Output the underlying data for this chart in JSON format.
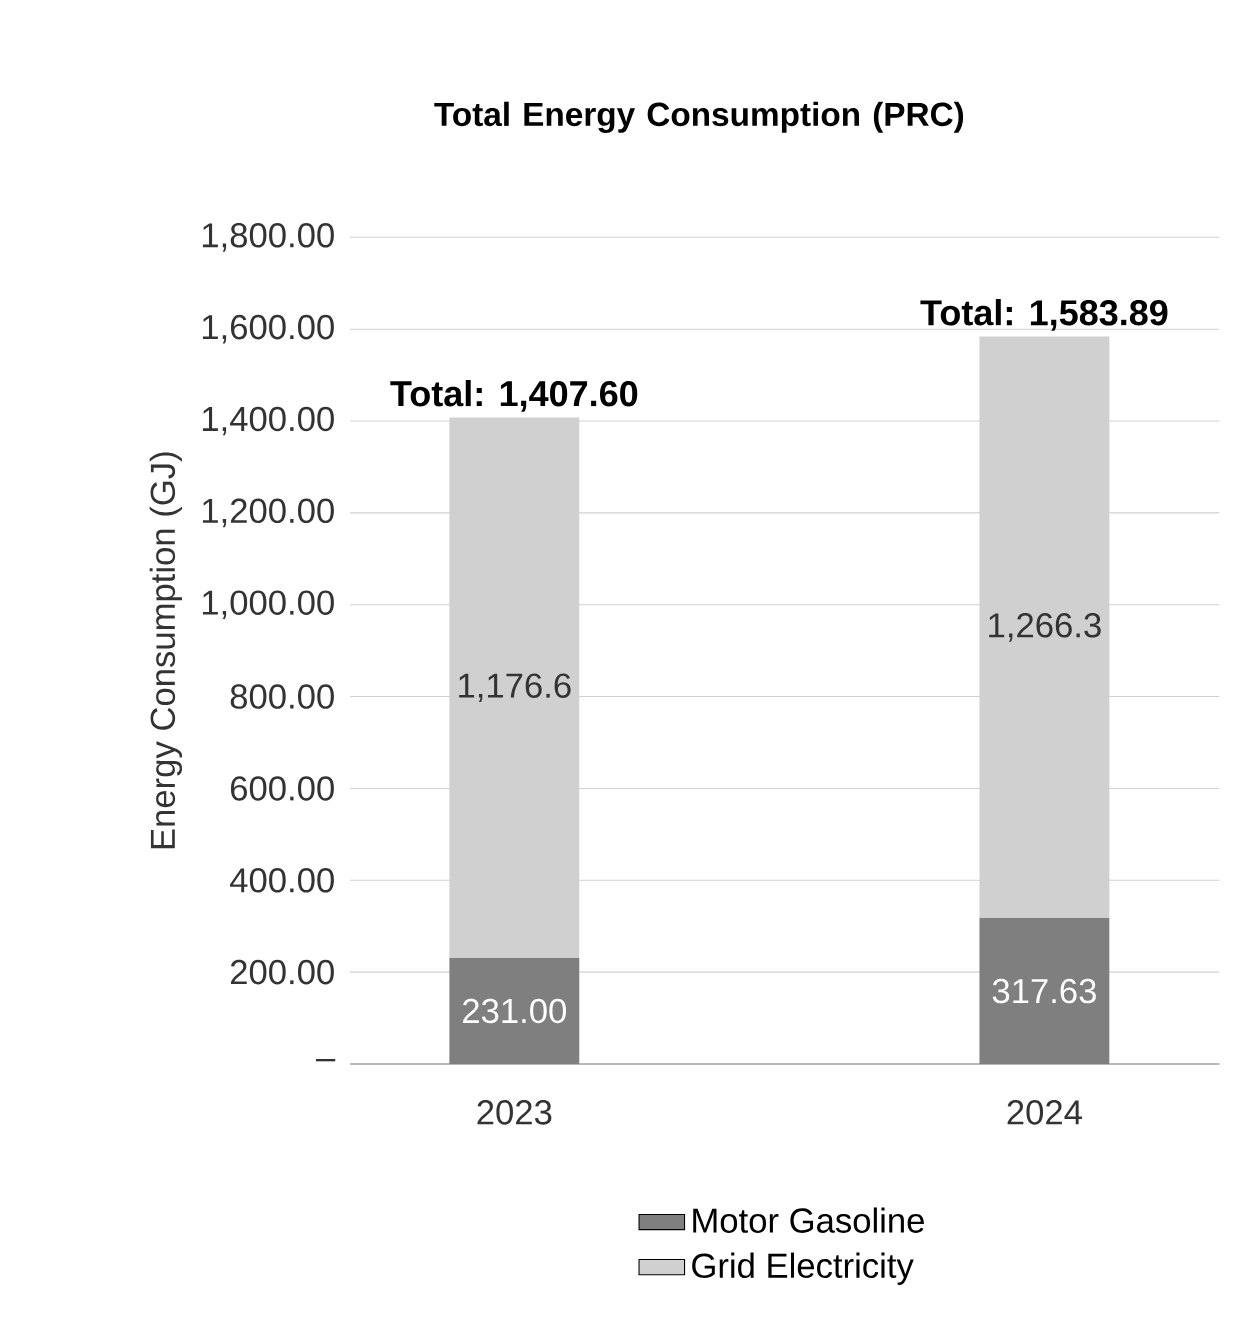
{
  "chart_data": {
    "type": "bar",
    "title": "Total Energy Consumption (PRC)",
    "ylabel": "Energy Consumption (GJ)",
    "categories": [
      "2023",
      "2024"
    ],
    "series": [
      {
        "name": "Motor Gasoline",
        "color": "#7f7f7f",
        "values": [
          231.0,
          317.63
        ],
        "value_labels": [
          "231.00",
          "317.63"
        ]
      },
      {
        "name": "Grid Electricity",
        "color": "#d0d0d0",
        "values": [
          1176.6,
          1266.26
        ],
        "value_labels": [
          "1,176.6",
          "1,266.3"
        ]
      }
    ],
    "stacked": true,
    "totals": [
      "Total: 1,407.60",
      "Total: 1,583.89"
    ],
    "ylim": [
      0,
      1800
    ],
    "yticks": [
      {
        "value": 0,
        "label": "–"
      },
      {
        "value": 200,
        "label": "200.00"
      },
      {
        "value": 400,
        "label": "400.00"
      },
      {
        "value": 600,
        "label": "600.00"
      },
      {
        "value": 800,
        "label": "800.00"
      },
      {
        "value": 1000,
        "label": "1,000.00"
      },
      {
        "value": 1200,
        "label": "1,200.00"
      },
      {
        "value": 1400,
        "label": "1,400.00"
      },
      {
        "value": 1600,
        "label": "1,600.00"
      },
      {
        "value": 1800,
        "label": "1,800.00"
      }
    ],
    "grid": "y",
    "legend": "bottom"
  }
}
